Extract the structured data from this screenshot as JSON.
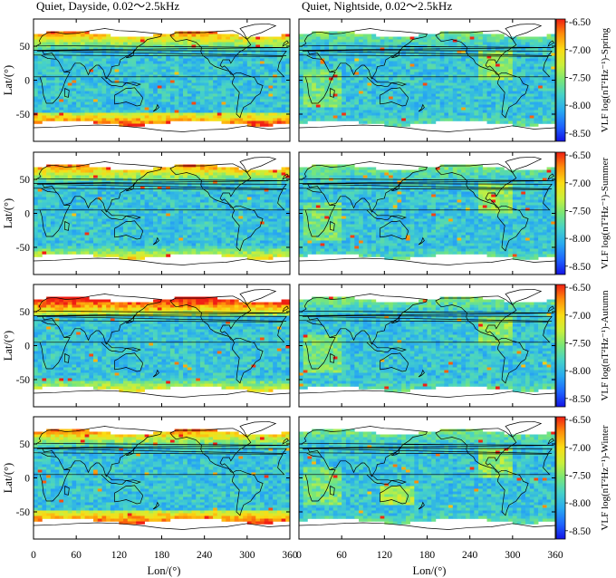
{
  "chart_data": {
    "type": "heatmap",
    "column_titles": [
      "Quiet, Dayside, 0.02～2.5kHz",
      "Quiet, Nightside, 0.02～2.5kHz"
    ],
    "xlabel": "Lon/(°)",
    "ylabel": "Lat/(°)",
    "xlim": [
      0,
      360
    ],
    "ylim": [
      -90,
      90
    ],
    "x_ticks": [
      0,
      60,
      120,
      180,
      240,
      300,
      360
    ],
    "y_ticks": [
      50,
      0,
      -50
    ],
    "x_tick_labels": [
      "0",
      "60",
      "120",
      "180",
      "240",
      "300",
      "360"
    ],
    "y_tick_labels": [
      "50",
      "0",
      "-50"
    ],
    "colorbar": {
      "range": [
        -8.65,
        -6.45
      ],
      "ticks": [
        -6.5,
        -7.0,
        -7.5,
        -8.0,
        -8.5
      ],
      "tick_labels": [
        "-6.50",
        "-7.00",
        "-7.50",
        "-8.00",
        "-8.50"
      ],
      "colors": [
        "#1414e6",
        "#1e64ff",
        "#28aaf0",
        "#46d2c8",
        "#78e678",
        "#c8f03c",
        "#fadc14",
        "#ff8c0a",
        "#f01e14"
      ]
    },
    "rows": [
      {
        "season": "Spring",
        "colorbar_label": "VLF  log(nT²Hz⁻¹)-Spring"
      },
      {
        "season": "Summer",
        "colorbar_label": "VLF  log(nT²Hz⁻¹)-Summer"
      },
      {
        "season": "Autumn",
        "colorbar_label": "VLF  log(nT²Hz⁻¹)-Autumn"
      },
      {
        "season": "Winter",
        "colorbar_label": "VLF  log(nT²Hz⁻¹)-Winter"
      }
    ],
    "data_coverage_lat": [
      -65,
      72
    ],
    "grid": false
  }
}
